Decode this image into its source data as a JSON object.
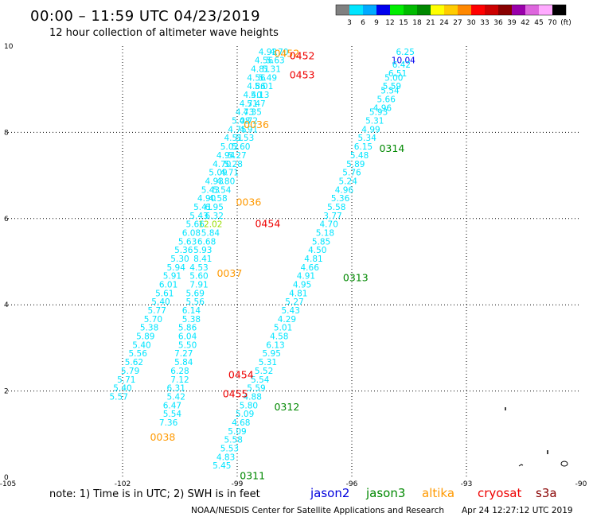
{
  "title": "00:00 – 11:59 UTC 04/23/2019",
  "subtitle": "12 hour collection of altimeter wave heights",
  "colorbar": {
    "labels": [
      "3",
      "6",
      "9",
      "12",
      "15",
      "18",
      "21",
      "24",
      "27",
      "30",
      "33",
      "36",
      "39",
      "42",
      "45",
      "70",
      "(ft)"
    ],
    "colors": [
      "#808080",
      "#00e5ff",
      "#00aaff",
      "#0000ee",
      "#00ee00",
      "#00bb00",
      "#008800",
      "#ffff00",
      "#ffcc00",
      "#ff8800",
      "#ff0000",
      "#cc0000",
      "#880000",
      "#9900aa",
      "#dd66dd",
      "#ffaaff",
      "#000000"
    ]
  },
  "note": "note: 1) Time is in UTC; 2) SWH is in feet",
  "missions": [
    {
      "name": "jason2",
      "color": "#0000dd"
    },
    {
      "name": "jason3",
      "color": "#008800"
    },
    {
      "name": "altika",
      "color": "#ff9900"
    },
    {
      "name": "cryosat",
      "color": "#ee0000"
    },
    {
      "name": "s3a",
      "color": "#880000"
    }
  ],
  "credit": "NOAA/NESDIS Center for Satellite Applications and Research",
  "generated": "Apr 24 12:27:12 UTC 2019",
  "chart_data": {
    "type": "scatter",
    "x_ticks": [
      "-105",
      "-102",
      "-99",
      "-96",
      "-93",
      "-90"
    ],
    "y_ticks": [
      "0",
      "2",
      "4",
      "6",
      "8",
      "10"
    ],
    "xlim": [
      -105,
      -90
    ],
    "ylim": [
      0,
      10
    ],
    "grid": true,
    "tracks": [
      {
        "color": "#00e5ff",
        "points": [
          {
            "lon": -94.6,
            "lat": 9.8,
            "v": "6.25"
          },
          {
            "lon": -94.65,
            "lat": 9.6,
            "v": "10.04",
            "color": "#0000ee"
          },
          {
            "lon": -94.7,
            "lat": 9.5,
            "v": "6.42"
          },
          {
            "lon": -94.8,
            "lat": 9.3,
            "v": "6.51"
          },
          {
            "lon": -94.9,
            "lat": 9.2,
            "v": "5.00"
          },
          {
            "lon": -94.95,
            "lat": 9.0,
            "v": "5.59"
          },
          {
            "lon": -95.0,
            "lat": 8.9,
            "v": "5.54"
          },
          {
            "lon": -95.1,
            "lat": 8.7,
            "v": "5.66"
          },
          {
            "lon": -95.2,
            "lat": 8.5,
            "v": "4.96"
          },
          {
            "lon": -95.3,
            "lat": 8.4,
            "v": "5.93"
          },
          {
            "lon": -95.4,
            "lat": 8.2,
            "v": "5.31"
          },
          {
            "lon": -95.5,
            "lat": 8.0,
            "v": "4.99"
          },
          {
            "lon": -95.6,
            "lat": 7.8,
            "v": "5.34"
          },
          {
            "lon": -95.7,
            "lat": 7.6,
            "v": "6.15"
          },
          {
            "lon": -95.8,
            "lat": 7.4,
            "v": "5.48"
          },
          {
            "lon": -95.9,
            "lat": 7.2,
            "v": "5.89"
          },
          {
            "lon": -96.0,
            "lat": 7.0,
            "v": "5.76"
          },
          {
            "lon": -96.1,
            "lat": 6.8,
            "v": "5.24"
          },
          {
            "lon": -96.2,
            "lat": 6.6,
            "v": "4.96"
          },
          {
            "lon": -96.3,
            "lat": 6.4,
            "v": "5.36"
          },
          {
            "lon": -96.4,
            "lat": 6.2,
            "v": "5.58"
          },
          {
            "lon": -96.5,
            "lat": 6.0,
            "v": "3.77"
          },
          {
            "lon": -96.6,
            "lat": 5.8,
            "v": "4.70"
          },
          {
            "lon": -96.7,
            "lat": 5.6,
            "v": "5.18"
          },
          {
            "lon": -96.8,
            "lat": 5.4,
            "v": "5.85"
          },
          {
            "lon": -96.9,
            "lat": 5.2,
            "v": "4.50"
          },
          {
            "lon": -97.0,
            "lat": 5.0,
            "v": "4.81"
          },
          {
            "lon": -97.1,
            "lat": 4.8,
            "v": "4.66"
          },
          {
            "lon": -97.2,
            "lat": 4.6,
            "v": "4.91"
          },
          {
            "lon": -97.3,
            "lat": 4.4,
            "v": "4.95"
          },
          {
            "lon": -97.4,
            "lat": 4.2,
            "v": "4.81"
          },
          {
            "lon": -97.5,
            "lat": 4.0,
            "v": "5.27"
          },
          {
            "lon": -97.6,
            "lat": 3.8,
            "v": "5.43"
          },
          {
            "lon": -97.7,
            "lat": 3.6,
            "v": "4.29"
          },
          {
            "lon": -97.8,
            "lat": 3.4,
            "v": "5.01"
          },
          {
            "lon": -97.9,
            "lat": 3.2,
            "v": "4.58"
          },
          {
            "lon": -98.0,
            "lat": 3.0,
            "v": "6.13"
          },
          {
            "lon": -98.1,
            "lat": 2.8,
            "v": "5.95"
          },
          {
            "lon": -98.2,
            "lat": 2.6,
            "v": "5.31"
          },
          {
            "lon": -98.3,
            "lat": 2.4,
            "v": "5.52"
          },
          {
            "lon": -98.4,
            "lat": 2.2,
            "v": "5.54"
          },
          {
            "lon": -98.5,
            "lat": 2.0,
            "v": "5.59"
          },
          {
            "lon": -98.6,
            "lat": 1.8,
            "v": "4.88"
          },
          {
            "lon": -98.7,
            "lat": 1.6,
            "v": "5.80"
          },
          {
            "lon": -98.8,
            "lat": 1.4,
            "v": "5.09"
          },
          {
            "lon": -98.9,
            "lat": 1.2,
            "v": "4.68"
          },
          {
            "lon": -99.0,
            "lat": 1.0,
            "v": "5.09"
          },
          {
            "lon": -99.1,
            "lat": 0.8,
            "v": "5.58"
          },
          {
            "lon": -99.2,
            "lat": 0.6,
            "v": "5.53"
          },
          {
            "lon": -99.3,
            "lat": 0.4,
            "v": "4.83"
          },
          {
            "lon": -99.4,
            "lat": 0.2,
            "v": "5.45"
          }
        ]
      },
      {
        "color": "#00e5ff",
        "points": [
          {
            "lon": -97.9,
            "lat": 9.8,
            "v": "4.70"
          },
          {
            "lon": -98.0,
            "lat": 9.6,
            "v": "5.63"
          },
          {
            "lon": -98.1,
            "lat": 9.4,
            "v": "5.31"
          },
          {
            "lon": -98.2,
            "lat": 9.2,
            "v": "5.49"
          },
          {
            "lon": -98.3,
            "lat": 9.0,
            "v": "5.01"
          },
          {
            "lon": -98.4,
            "lat": 8.8,
            "v": "5.13"
          },
          {
            "lon": -98.5,
            "lat": 8.6,
            "v": "5.47"
          },
          {
            "lon": -98.6,
            "lat": 8.4,
            "v": "4.35"
          },
          {
            "lon": -98.7,
            "lat": 8.2,
            "v": "4.72"
          },
          {
            "lon": -98.7,
            "lat": 8.0,
            "v": "4.91"
          },
          {
            "lon": -98.8,
            "lat": 7.8,
            "v": "5.53"
          },
          {
            "lon": -98.9,
            "lat": 7.6,
            "v": "5.60"
          },
          {
            "lon": -99.0,
            "lat": 7.4,
            "v": "5.27"
          },
          {
            "lon": -99.1,
            "lat": 7.2,
            "v": "5.28"
          },
          {
            "lon": -99.2,
            "lat": 7.0,
            "v": "4.71"
          },
          {
            "lon": -99.3,
            "lat": 6.8,
            "v": "4.80"
          },
          {
            "lon": -99.4,
            "lat": 6.6,
            "v": "5.54"
          },
          {
            "lon": -99.5,
            "lat": 6.4,
            "v": "4.58"
          },
          {
            "lon": -99.6,
            "lat": 6.2,
            "v": "6.95"
          },
          {
            "lon": -99.6,
            "lat": 6.0,
            "v": "6.32"
          },
          {
            "lon": -99.7,
            "lat": 5.8,
            "v": "12.02",
            "color": "#99dd00"
          },
          {
            "lon": -99.7,
            "lat": 5.6,
            "v": "5.84"
          },
          {
            "lon": -99.8,
            "lat": 5.4,
            "v": "6.68"
          },
          {
            "lon": -99.9,
            "lat": 5.2,
            "v": "5.93"
          },
          {
            "lon": -99.9,
            "lat": 5.0,
            "v": "8.41"
          },
          {
            "lon": -100.0,
            "lat": 4.8,
            "v": "4.53"
          },
          {
            "lon": -100.0,
            "lat": 4.6,
            "v": "5.60"
          },
          {
            "lon": -100.0,
            "lat": 4.4,
            "v": "7.91"
          },
          {
            "lon": -100.1,
            "lat": 4.2,
            "v": "5.69"
          },
          {
            "lon": -100.1,
            "lat": 4.0,
            "v": "5.56"
          },
          {
            "lon": -100.2,
            "lat": 3.8,
            "v": "6.14"
          },
          {
            "lon": -100.2,
            "lat": 3.6,
            "v": "5.38"
          },
          {
            "lon": -100.3,
            "lat": 3.4,
            "v": "5.86"
          },
          {
            "lon": -100.3,
            "lat": 3.2,
            "v": "6.04"
          },
          {
            "lon": -100.3,
            "lat": 3.0,
            "v": "5.50"
          },
          {
            "lon": -100.4,
            "lat": 2.8,
            "v": "7.27"
          },
          {
            "lon": -100.4,
            "lat": 2.6,
            "v": "5.84"
          },
          {
            "lon": -100.5,
            "lat": 2.4,
            "v": "6.28"
          },
          {
            "lon": -100.5,
            "lat": 2.2,
            "v": "7.12"
          },
          {
            "lon": -100.6,
            "lat": 2.0,
            "v": "6.31"
          },
          {
            "lon": -100.6,
            "lat": 1.8,
            "v": "5.42"
          },
          {
            "lon": -100.7,
            "lat": 1.6,
            "v": "6.47"
          },
          {
            "lon": -100.7,
            "lat": 1.4,
            "v": "5.54"
          },
          {
            "lon": -100.8,
            "lat": 1.2,
            "v": "7.36"
          }
        ]
      },
      {
        "color": "#00e5ff",
        "points": [
          {
            "lon": -98.2,
            "lat": 9.8,
            "v": "4.93"
          },
          {
            "lon": -98.3,
            "lat": 9.6,
            "v": "4.56"
          },
          {
            "lon": -98.4,
            "lat": 9.4,
            "v": "4.81"
          },
          {
            "lon": -98.5,
            "lat": 9.2,
            "v": "4.56"
          },
          {
            "lon": -98.5,
            "lat": 9.0,
            "v": "4.86"
          },
          {
            "lon": -98.6,
            "lat": 8.8,
            "v": "4.40"
          },
          {
            "lon": -98.7,
            "lat": 8.6,
            "v": "4.71"
          },
          {
            "lon": -98.8,
            "lat": 8.4,
            "v": "4.73"
          },
          {
            "lon": -98.9,
            "lat": 8.2,
            "v": "5.08"
          },
          {
            "lon": -99.0,
            "lat": 8.0,
            "v": "4.75"
          },
          {
            "lon": -99.1,
            "lat": 7.8,
            "v": "4.51"
          },
          {
            "lon": -99.2,
            "lat": 7.6,
            "v": "5.02"
          },
          {
            "lon": -99.3,
            "lat": 7.4,
            "v": "4.94"
          },
          {
            "lon": -99.4,
            "lat": 7.2,
            "v": "4.70"
          },
          {
            "lon": -99.5,
            "lat": 7.0,
            "v": "5.09"
          },
          {
            "lon": -99.6,
            "lat": 6.8,
            "v": "4.93"
          },
          {
            "lon": -99.7,
            "lat": 6.6,
            "v": "5.43"
          },
          {
            "lon": -99.8,
            "lat": 6.4,
            "v": "4.90"
          },
          {
            "lon": -99.9,
            "lat": 6.2,
            "v": "5.41"
          },
          {
            "lon": -100.0,
            "lat": 6.0,
            "v": "5.43"
          },
          {
            "lon": -100.1,
            "lat": 5.8,
            "v": "5.66"
          },
          {
            "lon": -100.2,
            "lat": 5.6,
            "v": "6.08"
          },
          {
            "lon": -100.3,
            "lat": 5.4,
            "v": "5.63"
          },
          {
            "lon": -100.4,
            "lat": 5.2,
            "v": "5.36"
          },
          {
            "lon": -100.5,
            "lat": 5.0,
            "v": "5.30"
          },
          {
            "lon": -100.6,
            "lat": 4.8,
            "v": "5.94"
          },
          {
            "lon": -100.7,
            "lat": 4.6,
            "v": "5.91"
          },
          {
            "lon": -100.8,
            "lat": 4.4,
            "v": "6.01"
          },
          {
            "lon": -100.9,
            "lat": 4.2,
            "v": "5.61"
          },
          {
            "lon": -101.0,
            "lat": 4.0,
            "v": "5.40"
          },
          {
            "lon": -101.1,
            "lat": 3.8,
            "v": "5.77"
          },
          {
            "lon": -101.2,
            "lat": 3.6,
            "v": "5.70"
          },
          {
            "lon": -101.3,
            "lat": 3.4,
            "v": "5.38"
          },
          {
            "lon": -101.4,
            "lat": 3.2,
            "v": "5.89"
          },
          {
            "lon": -101.5,
            "lat": 3.0,
            "v": "5.40"
          },
          {
            "lon": -101.6,
            "lat": 2.8,
            "v": "5.56"
          },
          {
            "lon": -101.7,
            "lat": 2.6,
            "v": "5.62"
          },
          {
            "lon": -101.8,
            "lat": 2.4,
            "v": "5.79"
          },
          {
            "lon": -101.9,
            "lat": 2.2,
            "v": "5.71"
          },
          {
            "lon": -102.0,
            "lat": 2.0,
            "v": "5.40"
          },
          {
            "lon": -102.1,
            "lat": 1.8,
            "v": "5.57"
          }
        ]
      }
    ],
    "pass_labels": [
      {
        "text": "0452",
        "lon": -97.7,
        "lat": 9.75,
        "color": "#ff9900"
      },
      {
        "text": "0452",
        "lon": -97.3,
        "lat": 9.7,
        "color": "#ee0000"
      },
      {
        "text": "0453",
        "lon": -97.3,
        "lat": 9.25,
        "color": "#ee0000"
      },
      {
        "text": "0036",
        "lon": -98.5,
        "lat": 8.1,
        "color": "#ff9900"
      },
      {
        "text": "0314",
        "lon": -94.95,
        "lat": 7.55,
        "color": "#008800"
      },
      {
        "text": "0036",
        "lon": -98.7,
        "lat": 6.3,
        "color": "#ff9900"
      },
      {
        "text": "0454",
        "lon": -98.2,
        "lat": 5.8,
        "color": "#ee0000"
      },
      {
        "text": "0037",
        "lon": -99.2,
        "lat": 4.65,
        "color": "#ff9900"
      },
      {
        "text": "0313",
        "lon": -95.9,
        "lat": 4.55,
        "color": "#008800"
      },
      {
        "text": "0454",
        "lon": -98.9,
        "lat": 2.3,
        "color": "#ee0000"
      },
      {
        "text": "0455",
        "lon": -99.05,
        "lat": 1.85,
        "color": "#ee0000"
      },
      {
        "text": "0312",
        "lon": -97.7,
        "lat": 1.55,
        "color": "#008800"
      },
      {
        "text": "0038",
        "lon": -100.95,
        "lat": 0.85,
        "color": "#ff9900"
      },
      {
        "text": "0311",
        "lon": -98.6,
        "lat": -0.05,
        "color": "#008800"
      }
    ]
  }
}
